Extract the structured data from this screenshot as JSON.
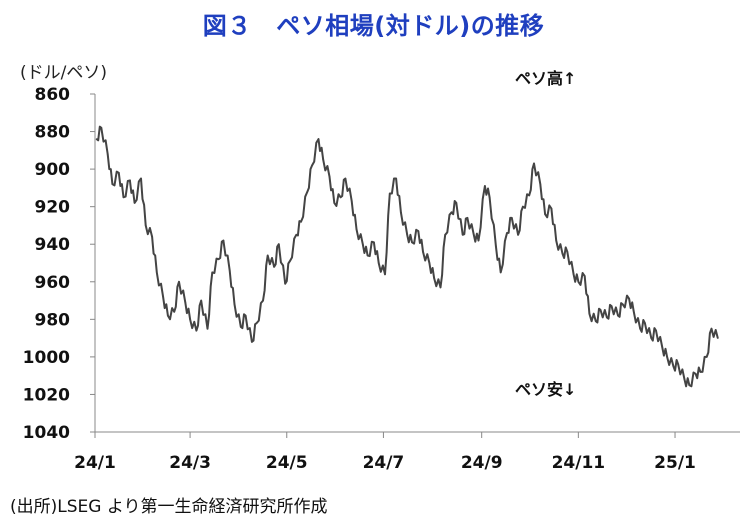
{
  "title": "図３　ペソ相場(対ドル)の推移",
  "unit_label": "(ドル/ペソ)",
  "source": "(出所)LSEG より第一生命経済研究所作成",
  "colors": {
    "title": "#1f3fbf",
    "line": "#444444",
    "text": "#111111"
  },
  "chart_data": {
    "type": "line",
    "title": "図３　ペソ相場(対ドル)の推移",
    "ylabel": "(ドル/ペソ)",
    "xlabel": "",
    "y_inverted": true,
    "ylim": [
      860,
      1040
    ],
    "y_ticks": [
      "860",
      "880",
      "900",
      "920",
      "940",
      "960",
      "980",
      "1000",
      "1020",
      "1040"
    ],
    "x_ticks": [
      "24/1",
      "24/3",
      "24/5",
      "24/7",
      "24/9",
      "24/11",
      "25/1"
    ],
    "grid": false,
    "annotations": [
      "ペソ高↑",
      "ペソ安↓"
    ],
    "series": [
      {
        "x": [
          "2024-01-02",
          "2024-01-05",
          "2024-01-09",
          "2024-01-12",
          "2024-01-16",
          "2024-01-19",
          "2024-01-23",
          "2024-01-26",
          "2024-01-30",
          "2024-02-02",
          "2024-02-06",
          "2024-02-09",
          "2024-02-13",
          "2024-02-16",
          "2024-02-20",
          "2024-02-23",
          "2024-02-27",
          "2024-03-01",
          "2024-03-05",
          "2024-03-08",
          "2024-03-12",
          "2024-03-15",
          "2024-03-19",
          "2024-03-22",
          "2024-03-26",
          "2024-03-29",
          "2024-04-02",
          "2024-04-05",
          "2024-04-09",
          "2024-04-12",
          "2024-04-16",
          "2024-04-19",
          "2024-04-23",
          "2024-04-26",
          "2024-04-30",
          "2024-05-03",
          "2024-05-07",
          "2024-05-10",
          "2024-05-14",
          "2024-05-17",
          "2024-05-21",
          "2024-05-24",
          "2024-05-28",
          "2024-05-31",
          "2024-06-04",
          "2024-06-07",
          "2024-06-11",
          "2024-06-14",
          "2024-06-18",
          "2024-06-21",
          "2024-06-25",
          "2024-06-28",
          "2024-07-02",
          "2024-07-05",
          "2024-07-09",
          "2024-07-12",
          "2024-07-16",
          "2024-07-19",
          "2024-07-23",
          "2024-07-26",
          "2024-07-30",
          "2024-08-02",
          "2024-08-06",
          "2024-08-09",
          "2024-08-13",
          "2024-08-16",
          "2024-08-20",
          "2024-08-23",
          "2024-08-27",
          "2024-08-30",
          "2024-09-03",
          "2024-09-06",
          "2024-09-10",
          "2024-09-13",
          "2024-09-17",
          "2024-09-20",
          "2024-09-24",
          "2024-09-27",
          "2024-10-01",
          "2024-10-04",
          "2024-10-08",
          "2024-10-11",
          "2024-10-15",
          "2024-10-18",
          "2024-10-22",
          "2024-10-25",
          "2024-10-29",
          "2024-11-01",
          "2024-11-05",
          "2024-11-08",
          "2024-11-12",
          "2024-11-15",
          "2024-11-19",
          "2024-11-22",
          "2024-11-26",
          "2024-11-29",
          "2024-12-03",
          "2024-12-06",
          "2024-12-10",
          "2024-12-13",
          "2024-12-17",
          "2024-12-20",
          "2024-12-24",
          "2024-12-27",
          "2024-12-31",
          "2025-01-03",
          "2025-01-07",
          "2025-01-10",
          "2025-01-14",
          "2025-01-17",
          "2025-01-21",
          "2025-01-24",
          "2025-01-28"
        ],
        "y": [
          884,
          878,
          892,
          908,
          902,
          915,
          906,
          918,
          905,
          930,
          936,
          955,
          968,
          978,
          976,
          960,
          971,
          980,
          986,
          970,
          985,
          955,
          948,
          938,
          954,
          972,
          984,
          978,
          992,
          982,
          970,
          946,
          952,
          940,
          961,
          949,
          935,
          928,
          912,
          898,
          884,
          895,
          904,
          918,
          915,
          905,
          917,
          932,
          940,
          946,
          939,
          950,
          956,
          913,
          905,
          923,
          935,
          939,
          933,
          944,
          950,
          958,
          963,
          935,
          923,
          918,
          935,
          926,
          935,
          938,
          909,
          915,
          941,
          955,
          934,
          926,
          935,
          920,
          914,
          897,
          908,
          924,
          921,
          938,
          945,
          944,
          956,
          960,
          957,
          977,
          981,
          975,
          979,
          973,
          978,
          972,
          969,
          976,
          985,
          982,
          990,
          986,
          995,
          1000,
          1005,
          1004,
          1012,
          1015,
          1009,
          1008,
          1000,
          985,
          990
        ]
      }
    ]
  }
}
